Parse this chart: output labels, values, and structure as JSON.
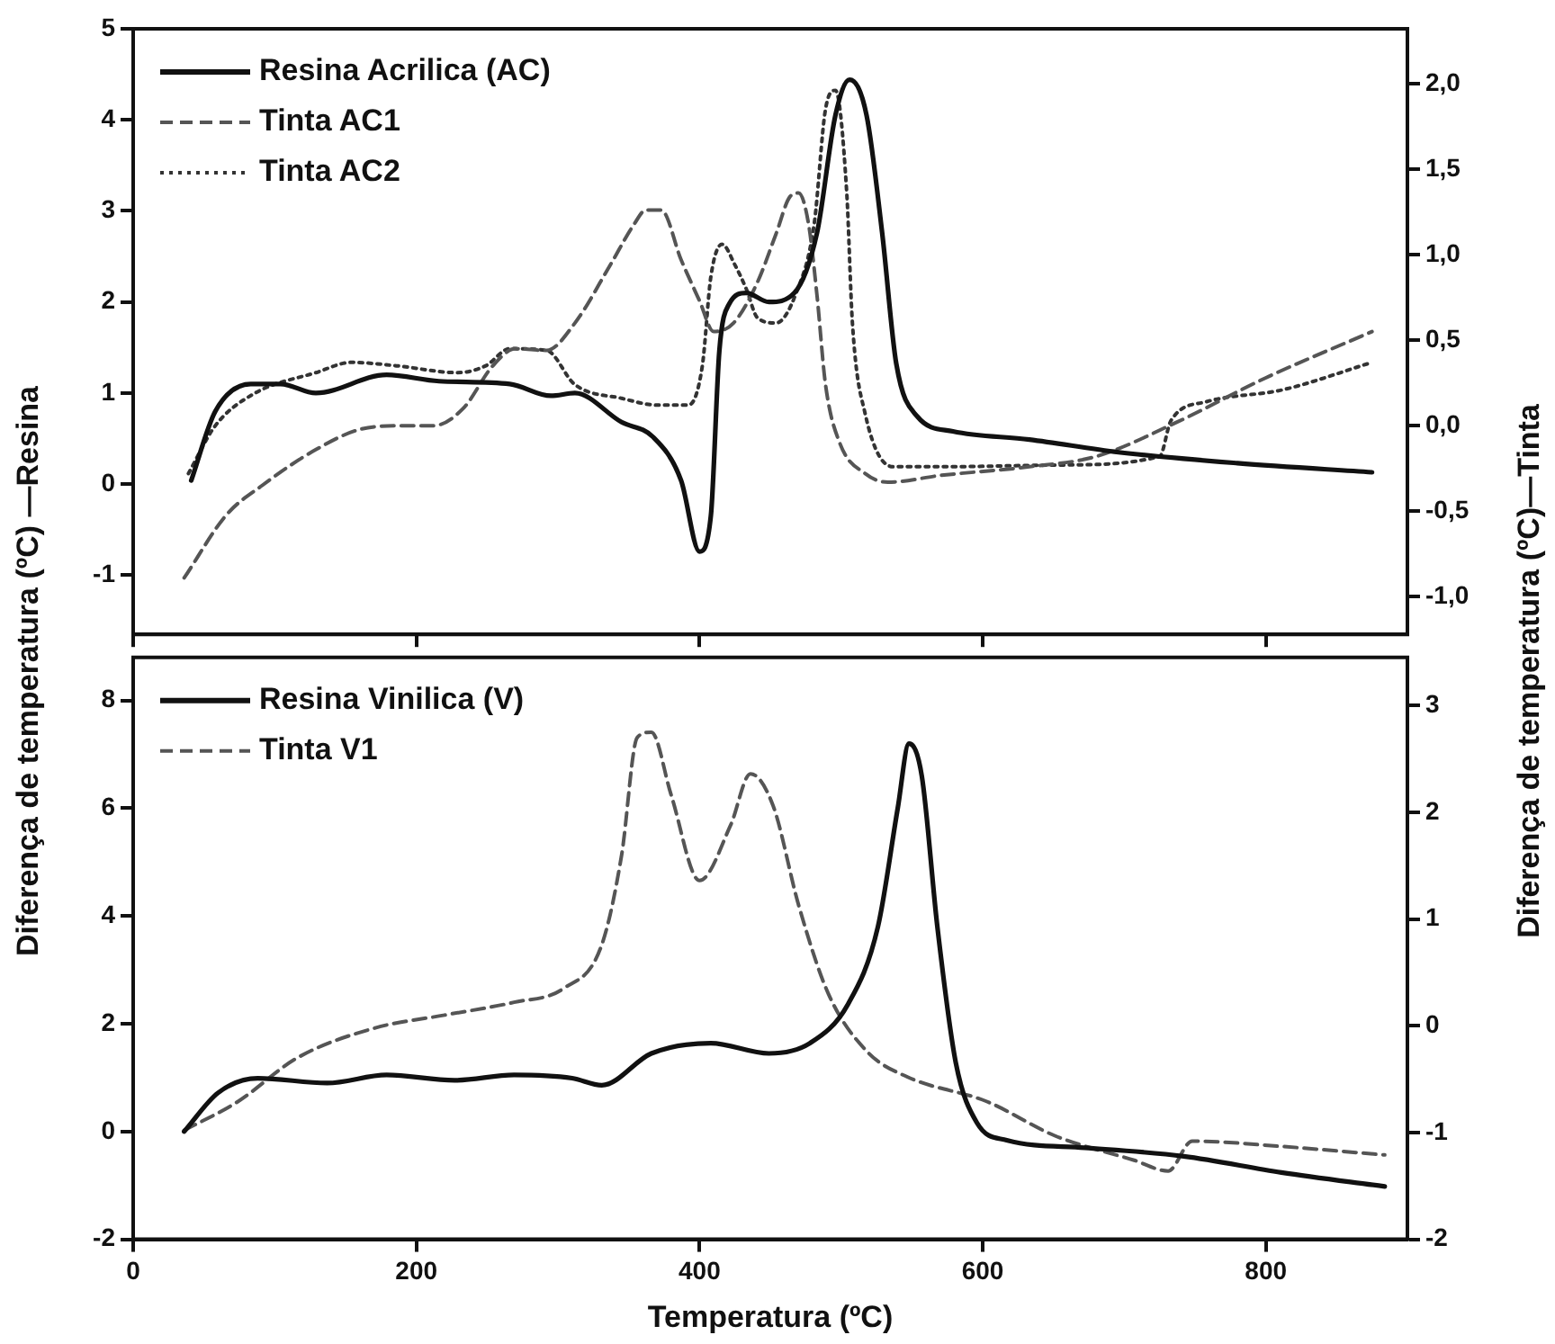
{
  "chart_data": [
    {
      "type": "line",
      "ylabel": "Diferença de temperatura (ºC) —Resina",
      "y2label": "Diferença de temperatura (ºC)—Tinta",
      "xlim": [
        0,
        900
      ],
      "xticks": [
        0,
        200,
        400,
        600,
        800
      ],
      "ylim": [
        -1.65,
        5
      ],
      "yticks": [
        -1,
        0,
        1,
        2,
        3,
        4,
        5
      ],
      "y2lim": [
        -1.22,
        2.32
      ],
      "y2ticks": [
        {
          "value": -1,
          "label": "-1,0"
        },
        {
          "value": -0.5,
          "label": "-0,5"
        },
        {
          "value": 0,
          "label": "0,0"
        },
        {
          "value": 0.5,
          "label": "0,5"
        },
        {
          "value": 1,
          "label": "1,0"
        },
        {
          "value": 1.5,
          "label": "1,5"
        },
        {
          "value": 2,
          "label": "2,0"
        }
      ],
      "tick_labels": "y",
      "grid": false,
      "legend": "top left",
      "marker": "none",
      "series": [
        {
          "name": "Resina Acrilica (AC)",
          "color": "#111111",
          "line_style": "solid",
          "axis": "y",
          "x": [
            41,
            58,
            83,
            104,
            129,
            179,
            216,
            266,
            295,
            312,
            345,
            367,
            387,
            400,
            408,
            414,
            421,
            433,
            449,
            467,
            483,
            496,
            506,
            518,
            529,
            539,
            554,
            579,
            633,
            696,
            780,
            875
          ],
          "values": [
            0.04,
            0.8,
            1.1,
            1.1,
            1.0,
            1.2,
            1.13,
            1.1,
            0.97,
            1.0,
            0.68,
            0.52,
            0.04,
            -0.74,
            -0.35,
            1.46,
            1.98,
            2.1,
            2.0,
            2.1,
            2.76,
            4.05,
            4.44,
            4.05,
            2.76,
            1.32,
            0.74,
            0.58,
            0.49,
            0.35,
            0.23,
            0.13
          ]
        },
        {
          "name": "Tinta AC1",
          "color": "#555555",
          "line_style": "dashed",
          "axis": "y2",
          "x": [
            36,
            66,
            91,
            129,
            161,
            191,
            212,
            233,
            254,
            270,
            292,
            312,
            337,
            354,
            362,
            373,
            387,
            400,
            410,
            424,
            441,
            454,
            464,
            470,
            477,
            483,
            489,
            499,
            517,
            533,
            571,
            633,
            680,
            737,
            800,
            875
          ],
          "values": [
            -0.89,
            -0.52,
            -0.35,
            -0.14,
            -0.02,
            0.0,
            0.0,
            0.1,
            0.35,
            0.45,
            0.44,
            0.6,
            0.94,
            1.18,
            1.26,
            1.26,
            0.97,
            0.73,
            0.55,
            0.6,
            0.84,
            1.12,
            1.34,
            1.36,
            1.18,
            0.76,
            0.24,
            -0.1,
            -0.28,
            -0.33,
            -0.29,
            -0.24,
            -0.18,
            0.02,
            0.28,
            0.55
          ]
        },
        {
          "name": "Tinta AC2",
          "color": "#333333",
          "line_style": "dotted",
          "axis": "y2",
          "x": [
            39,
            58,
            86,
            129,
            154,
            186,
            229,
            249,
            266,
            292,
            312,
            345,
            371,
            392,
            402,
            408,
            416,
            425,
            433,
            441,
            454,
            468,
            481,
            489,
            496,
            504,
            508,
            517,
            537,
            571,
            654,
            725,
            733,
            758,
            812,
            875
          ],
          "values": [
            -0.28,
            0.0,
            0.19,
            0.31,
            0.37,
            0.35,
            0.31,
            0.35,
            0.45,
            0.44,
            0.24,
            0.16,
            0.12,
            0.12,
            0.35,
            0.87,
            1.06,
            0.94,
            0.8,
            0.63,
            0.6,
            0.77,
            1.18,
            1.85,
            1.96,
            1.36,
            0.6,
            0.07,
            -0.24,
            -0.24,
            -0.23,
            -0.18,
            0.03,
            0.14,
            0.21,
            0.37
          ]
        }
      ]
    },
    {
      "type": "line",
      "xlabel": "Temperatura (ºC)",
      "xlim": [
        0,
        900
      ],
      "xticks": [
        0,
        200,
        400,
        600,
        800
      ],
      "ylim": [
        -2,
        8.8
      ],
      "yticks": [
        -2,
        0,
        2,
        4,
        6,
        8
      ],
      "y2lim": [
        -2,
        3.45
      ],
      "y2ticks": [
        -2,
        -1,
        0,
        1,
        2,
        3
      ],
      "grid": false,
      "legend": "top left",
      "marker": "none",
      "series": [
        {
          "name": "Resina Vinilica (V)",
          "color": "#111111",
          "line_style": "solid",
          "axis": "y",
          "x": [
            36,
            60,
            88,
            137,
            179,
            227,
            269,
            310,
            331,
            366,
            408,
            449,
            478,
            505,
            526,
            540,
            548,
            557,
            568,
            581,
            596,
            617,
            672,
            742,
            811,
            884
          ],
          "values": [
            0,
            0.72,
            0.99,
            0.9,
            1.05,
            0.95,
            1.05,
            0.99,
            0.86,
            1.45,
            1.64,
            1.45,
            1.64,
            2.37,
            3.8,
            6.0,
            7.2,
            6.6,
            3.8,
            1.28,
            0.16,
            -0.16,
            -0.3,
            -0.46,
            -0.76,
            -1.02
          ]
        },
        {
          "name": "Tinta V1",
          "color": "#555555",
          "line_style": "dashed",
          "axis": "y2",
          "x": [
            36,
            74,
            116,
            171,
            220,
            269,
            304,
            331,
            345,
            356,
            366,
            380,
            400,
            422,
            436,
            452,
            470,
            491,
            519,
            547,
            603,
            651,
            707,
            731,
            748,
            811,
            884
          ],
          "values": [
            -0.98,
            -0.71,
            -0.3,
            -0.02,
            0.1,
            0.22,
            0.35,
            0.76,
            1.6,
            2.7,
            2.75,
            2.16,
            1.36,
            1.88,
            2.36,
            2.06,
            1.13,
            0.3,
            -0.25,
            -0.48,
            -0.71,
            -1.03,
            -1.26,
            -1.36,
            -1.08,
            -1.13,
            -1.21
          ]
        }
      ]
    }
  ]
}
